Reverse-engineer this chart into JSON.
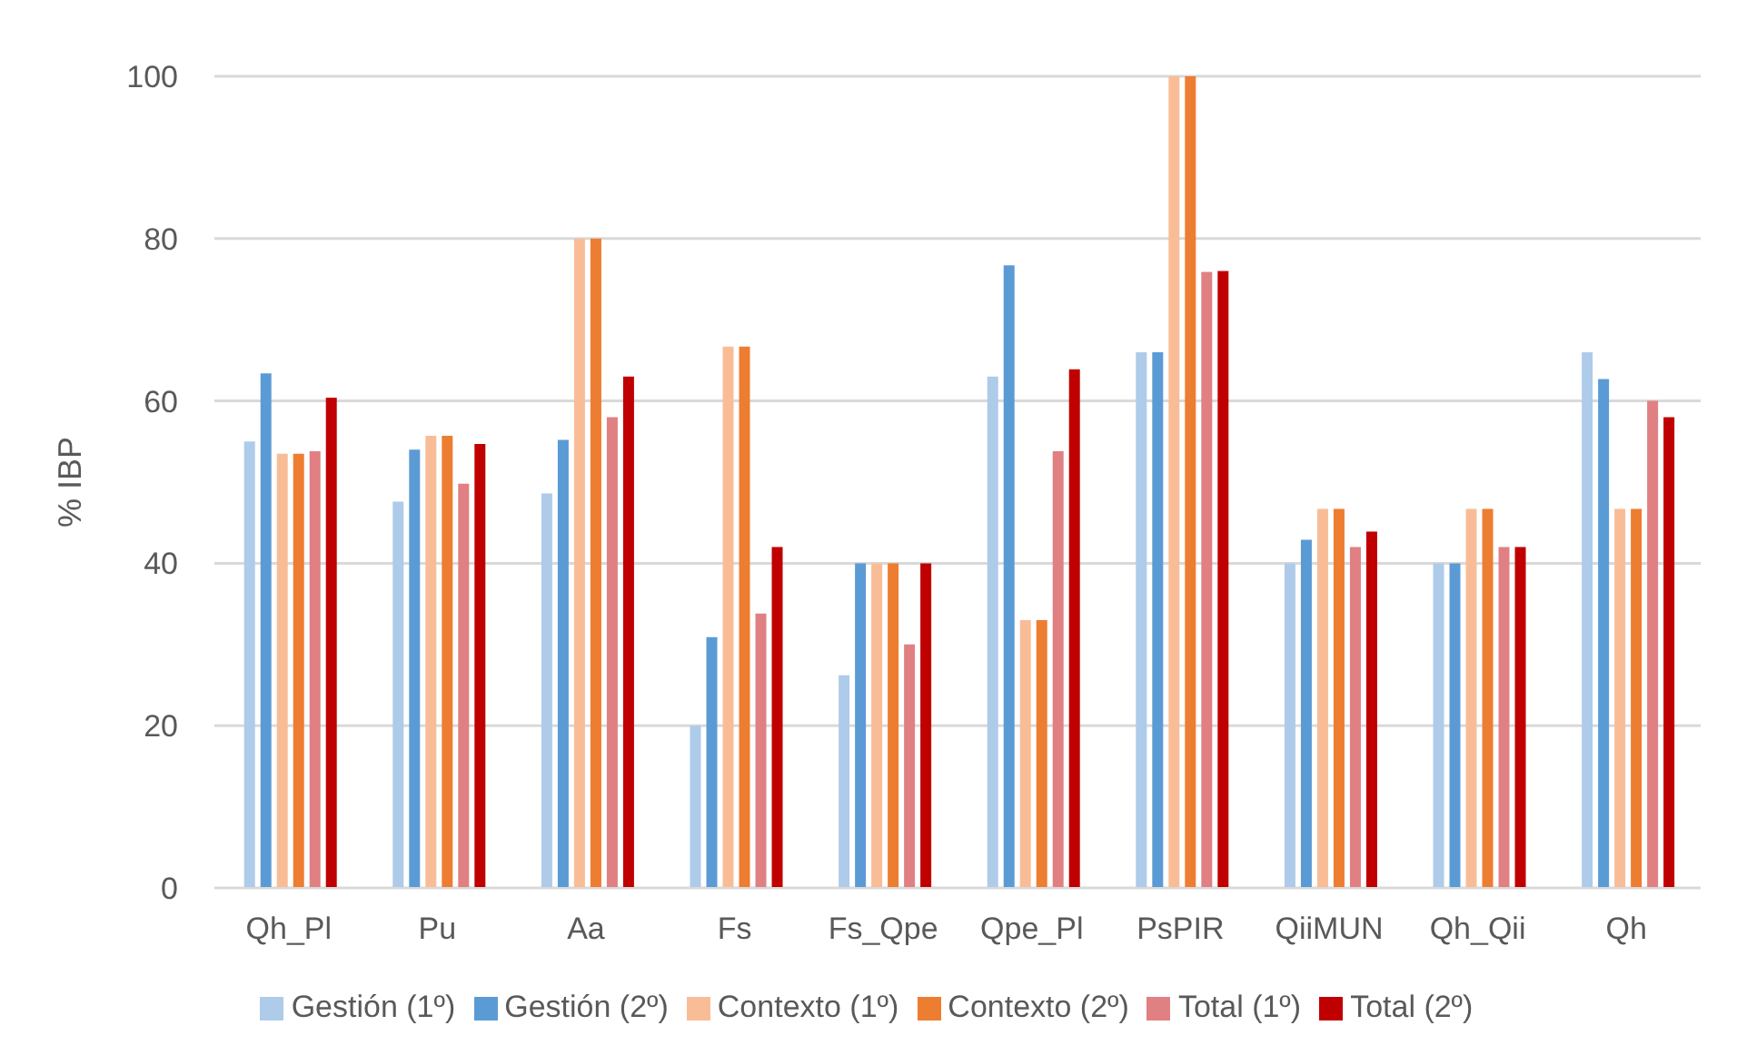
{
  "chart_data": {
    "type": "bar",
    "ylabel": "% IBP",
    "categories": [
      "Qh_Pl",
      "Pu",
      "Aa",
      "Fs",
      "Fs_Qpe",
      "Qpe_Pl",
      "PsPIR",
      "QiiMUN",
      "Qh_Qii",
      "Qh"
    ],
    "series": [
      {
        "name": "Gestión (1º)",
        "color": "#aecbea",
        "values": [
          55,
          47.6,
          48.6,
          20,
          26.2,
          63,
          66,
          40,
          40,
          66
        ]
      },
      {
        "name": "Gestión (2º)",
        "color": "#5b9bd5",
        "values": [
          63.4,
          54,
          55.2,
          30.9,
          40,
          76.7,
          66,
          42.9,
          40,
          62.7
        ]
      },
      {
        "name": "Contexto (1º)",
        "color": "#f8bd97",
        "values": [
          53.5,
          55.7,
          80,
          66.7,
          40,
          33,
          100,
          46.7,
          46.7,
          46.7
        ]
      },
      {
        "name": "Contexto (2º)",
        "color": "#ed7d31",
        "values": [
          53.5,
          55.7,
          80,
          66.7,
          40,
          33,
          100,
          46.7,
          46.7,
          46.7
        ]
      },
      {
        "name": "Total (1º)",
        "color": "#e08083",
        "values": [
          53.8,
          49.8,
          58,
          33.8,
          30,
          53.8,
          75.9,
          42,
          42,
          60
        ]
      },
      {
        "name": "Total (2º)",
        "color": "#c00000",
        "values": [
          60.4,
          54.7,
          63,
          42,
          40,
          63.9,
          76,
          43.9,
          42,
          58
        ]
      }
    ],
    "ylim": [
      0,
      100
    ],
    "yticks": [
      0,
      20,
      40,
      60,
      80,
      100
    ],
    "grid": "y",
    "legend": "bottom"
  }
}
